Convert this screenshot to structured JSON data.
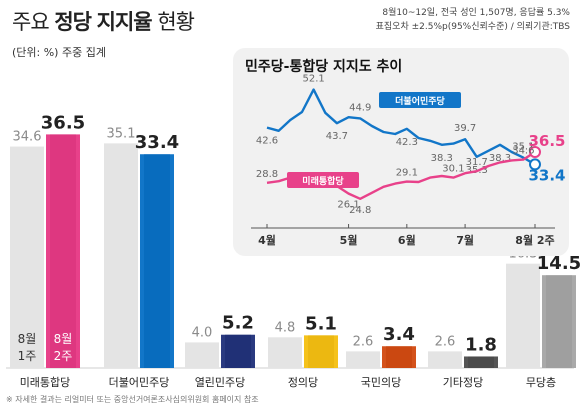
{
  "header": {
    "title_part1": "주요",
    "title_part2": "정당",
    "title_part3": "지지율",
    "title_part4": "현황",
    "source_line1": "8월10~12일, 전국 성인 1,507명, 응답률 5.3%",
    "source_line2": "표집오차 ±2.5%p(95%신뢰수준) / 의뢰기관:TBS",
    "unit_label": "(단위: %) 주중 집계"
  },
  "chart_data": [
    {
      "type": "bar",
      "categories": [
        "미래통합당",
        "더불어민주당",
        "열린민주당",
        "정의당",
        "국민의당",
        "기타정당",
        "무당층"
      ],
      "series": [
        {
          "name": "8월 1주",
          "values": [
            34.6,
            35.1,
            4.0,
            4.8,
            2.6,
            2.6,
            16.3
          ]
        },
        {
          "name": "8월 2주",
          "values": [
            36.5,
            33.4,
            5.2,
            5.1,
            3.4,
            1.8,
            14.5
          ]
        }
      ],
      "colors": [
        "#e8418a",
        "#1276c8",
        "#2a3a80",
        "#f5c21b",
        "#d4521b",
        "#555555",
        "#a9a9a9"
      ],
      "legend": {
        "week1": "8월\n1주",
        "week2": "8월\n2주"
      },
      "ylim": [
        0,
        40
      ]
    },
    {
      "type": "line",
      "title": "민주당-통합당 지지도 추이",
      "x_ticks": [
        "4월",
        "5월",
        "6월",
        "7월",
        "8월 2주"
      ],
      "series": [
        {
          "name": "더불어민주당",
          "color": "#1276c8",
          "values": [
            42.6,
            41.8,
            44.5,
            46.5,
            52.1,
            46.3,
            43.7,
            45.2,
            44.9,
            43.0,
            41.5,
            41.0,
            42.3,
            40.0,
            39.3,
            38.3,
            38.6,
            39.7,
            35.3,
            36.8,
            38.3,
            36.5,
            35.1,
            33.4
          ],
          "labels": {
            "0": "42.6",
            "4": "52.1",
            "6": "43.7",
            "8": "44.9",
            "12": "42.3",
            "15": "38.3",
            "17": "39.7",
            "18": "35.3",
            "20": "38.3",
            "22": "35.1",
            "23": "33.4"
          }
        },
        {
          "name": "미래통합당",
          "color": "#e8418a",
          "values": [
            28.8,
            29.2,
            30.1,
            30.6,
            30.3,
            29.6,
            28.0,
            26.1,
            24.8,
            26.3,
            27.8,
            28.6,
            29.1,
            29.0,
            30.1,
            30.5,
            30.1,
            31.2,
            31.7,
            33.0,
            33.9,
            34.4,
            34.6,
            36.5
          ],
          "labels": {
            "0": "28.8",
            "7": "26.1",
            "8": "24.8",
            "12": "29.1",
            "16": "30.1",
            "18": "31.7",
            "22": "34.6",
            "23": "36.5"
          }
        }
      ],
      "ylim": [
        20,
        56
      ]
    }
  ],
  "footnote": "※ 자세한 결과는 리얼미터 또는 중앙선거여론조사심의위원회 홈페이지 참조"
}
